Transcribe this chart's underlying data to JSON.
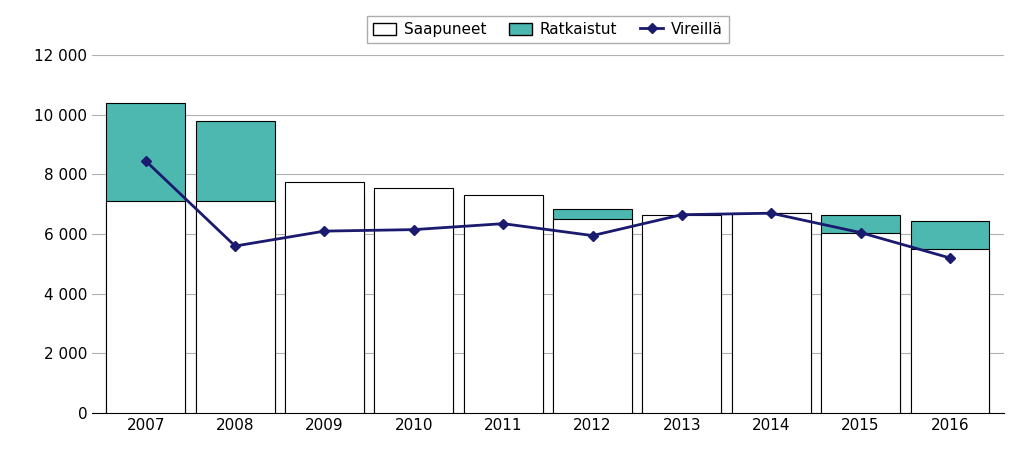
{
  "years": [
    2007,
    2008,
    2009,
    2010,
    2011,
    2012,
    2013,
    2014,
    2015,
    2016
  ],
  "saapuneet": [
    7100,
    7100,
    7750,
    7550,
    7300,
    6500,
    6650,
    6700,
    6050,
    5500
  ],
  "ratkaistut": [
    10400,
    9800,
    7350,
    7450,
    7200,
    6850,
    6000,
    6700,
    6650,
    6450
  ],
  "vireilla": [
    8450,
    5600,
    6100,
    6150,
    6350,
    5950,
    6650,
    6700,
    6050,
    5200
  ],
  "legend_labels": [
    "Saapuneet",
    "Ratkaistut",
    "Vireillä"
  ],
  "bar_color_saapuneet": "#ffffff",
  "bar_color_ratkaistut": "#4db8b0",
  "line_color_vireilla": "#1a1a6e",
  "bar_edgecolor": "#000000",
  "ylim": [
    0,
    12000
  ],
  "yticks": [
    0,
    2000,
    4000,
    6000,
    8000,
    10000,
    12000
  ],
  "ytick_labels": [
    "0",
    "2 000",
    "4 000",
    "6 000",
    "8 000",
    "10 000",
    "12 000"
  ],
  "grid_color": "#b0b0b0",
  "background_color": "#ffffff",
  "bar_width": 0.42,
  "figsize": [
    10.24,
    4.59
  ],
  "dpi": 100
}
